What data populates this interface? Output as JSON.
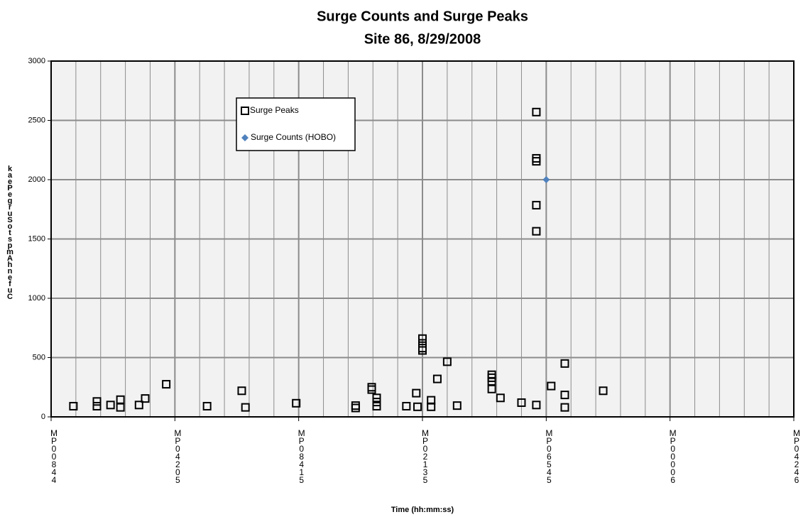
{
  "chart_data": {
    "type": "scatter",
    "title": "Surge Counts and Surge Peaks",
    "subtitle": "Site 86, 8/29/2008",
    "x_label": "Time (hh:mm:ss)",
    "y_label": "kaePegruSotspmAhnefuC",
    "xlim": [
      0,
      6
    ],
    "xticks": [
      {
        "value": 0,
        "label": "MP00844"
      },
      {
        "value": 1,
        "label": "MP04205"
      },
      {
        "value": 2,
        "label": "MP08415"
      },
      {
        "value": 3,
        "label": "MP02135"
      },
      {
        "value": 4,
        "label": "MP06545"
      },
      {
        "value": 5,
        "label": "MP00006"
      },
      {
        "value": 6,
        "label": "MP04246"
      }
    ],
    "ylim": [
      0,
      3000
    ],
    "yticks": [
      0,
      500,
      1000,
      1500,
      2000,
      2500,
      3000
    ],
    "grid": true,
    "series": [
      {
        "name": "Surge Peaks",
        "marker": "square",
        "color": "#000000",
        "x": [
          0.18,
          0.37,
          0.37,
          0.48,
          0.56,
          0.56,
          0.71,
          0.76,
          0.93,
          1.26,
          1.54,
          1.57,
          1.98,
          2.46,
          2.46,
          2.59,
          2.59,
          2.63,
          2.63,
          2.63,
          2.87,
          2.95,
          2.96,
          3.0,
          3.0,
          3.0,
          3.0,
          3.07,
          3.07,
          3.12,
          3.2,
          3.28,
          3.56,
          3.56,
          3.56,
          3.56,
          3.63,
          3.8,
          3.92,
          3.92,
          3.92,
          3.92,
          3.92,
          3.92,
          4.04,
          4.15,
          4.15,
          4.15,
          4.46
        ],
        "values": [
          90,
          130,
          90,
          100,
          145,
          80,
          100,
          155,
          275,
          90,
          220,
          80,
          115,
          95,
          75,
          250,
          230,
          160,
          125,
          90,
          90,
          200,
          85,
          660,
          620,
          580,
          560,
          140,
          85,
          320,
          465,
          95,
          355,
          330,
          300,
          235,
          160,
          120,
          100,
          2570,
          2180,
          2155,
          1785,
          1565,
          260,
          450,
          185,
          80,
          220
        ]
      },
      {
        "name": "Surge Counts (HOBO)",
        "marker": "diamond",
        "color": "#4f81bd",
        "x": [
          4.0
        ],
        "values": [
          2000
        ]
      }
    ]
  }
}
